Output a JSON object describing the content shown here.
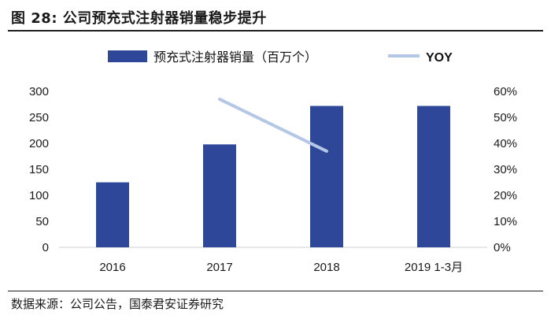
{
  "figure": {
    "title": "图 28:  公司预充式注射器销量稳步提升",
    "source": "数据来源：公司公告，国泰君安证券研究"
  },
  "chart_data": {
    "type": "bar",
    "categories": [
      "2016",
      "2017",
      "2018",
      "2019 1-3月"
    ],
    "series": [
      {
        "name": "预充式注射器销量（百万个）",
        "type": "bar",
        "axis": "left",
        "values": [
          125,
          198,
          272,
          272
        ],
        "color": "#2e4799"
      },
      {
        "name": "YOY",
        "type": "line",
        "axis": "right",
        "values": [
          null,
          57,
          37,
          null
        ],
        "color": "#b4c7e7"
      }
    ],
    "y_left": {
      "range": [
        0,
        300
      ],
      "ticks": [
        0,
        50,
        100,
        150,
        200,
        250,
        300
      ]
    },
    "y_right": {
      "range": [
        0,
        60
      ],
      "ticks": [
        "0%",
        "10%",
        "20%",
        "30%",
        "40%",
        "50%",
        "60%"
      ]
    },
    "grid": false,
    "legend_position": "top-center"
  }
}
